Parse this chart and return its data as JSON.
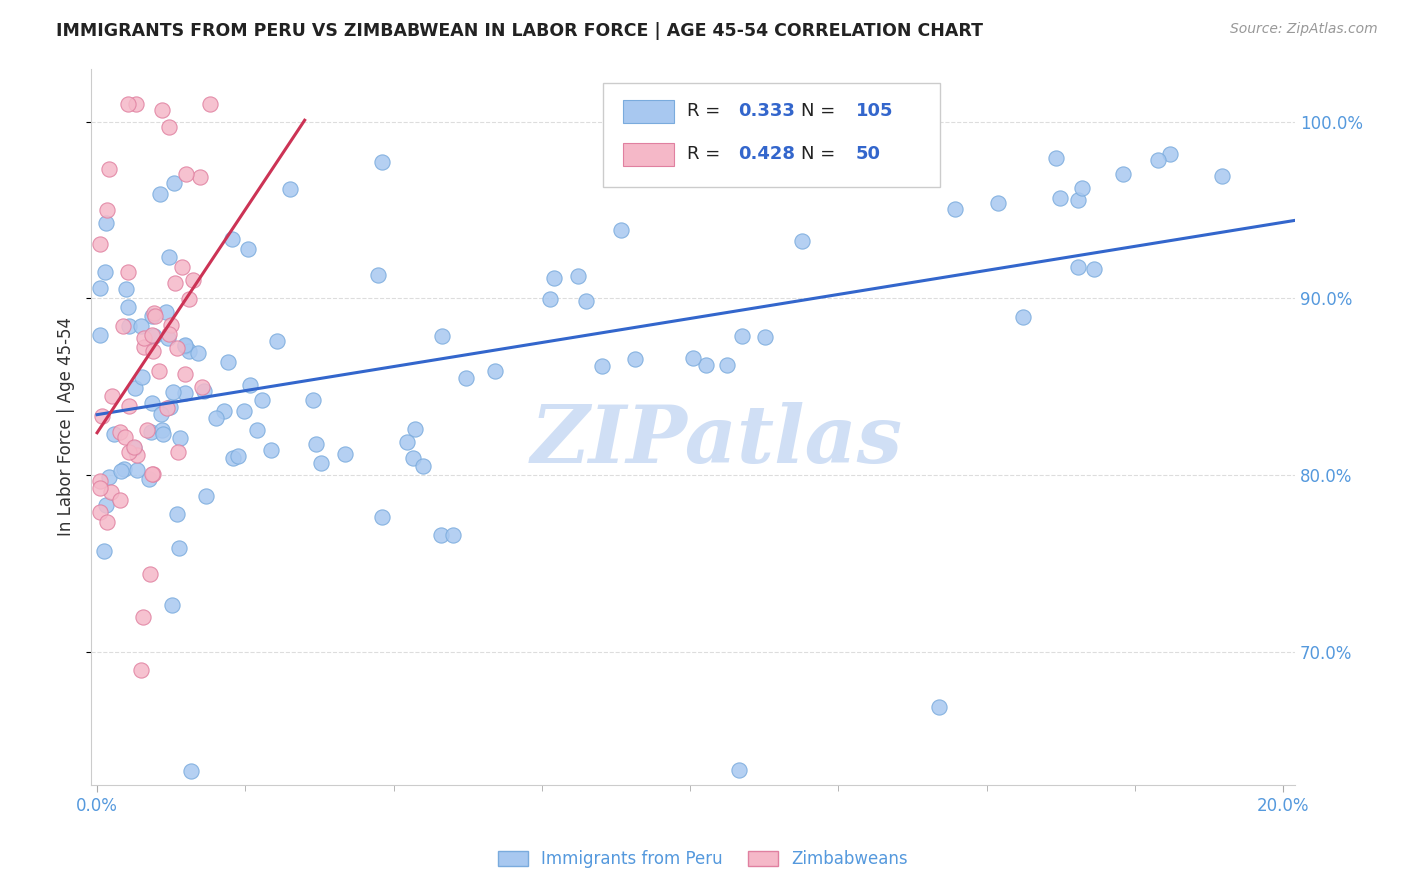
{
  "title": "IMMIGRANTS FROM PERU VS ZIMBABWEAN IN LABOR FORCE | AGE 45-54 CORRELATION CHART",
  "source": "Source: ZipAtlas.com",
  "ylabel": "In Labor Force | Age 45-54",
  "ytick_labels": [
    "70.0%",
    "80.0%",
    "90.0%",
    "100.0%"
  ],
  "ytick_values": [
    0.7,
    0.8,
    0.9,
    1.0
  ],
  "xlim": [
    -0.001,
    0.202
  ],
  "ylim": [
    0.625,
    1.03
  ],
  "legend_peru_R": "0.333",
  "legend_peru_N": "105",
  "legend_zimb_R": "0.428",
  "legend_zimb_N": "50",
  "peru_color": "#a8c8f0",
  "peru_edge_color": "#7aabdd",
  "zimb_color": "#f5b8c8",
  "zimb_edge_color": "#e080a0",
  "trend_peru_color": "#3366cc",
  "trend_zimb_color": "#cc3355",
  "watermark_color": "#d0dff5",
  "background_color": "#ffffff",
  "grid_color": "#dddddd",
  "title_color": "#222222",
  "source_color": "#999999",
  "axis_label_color": "#333333",
  "tick_color": "#5599dd",
  "legend_text_color": "#222222",
  "legend_val_color": "#3366cc"
}
